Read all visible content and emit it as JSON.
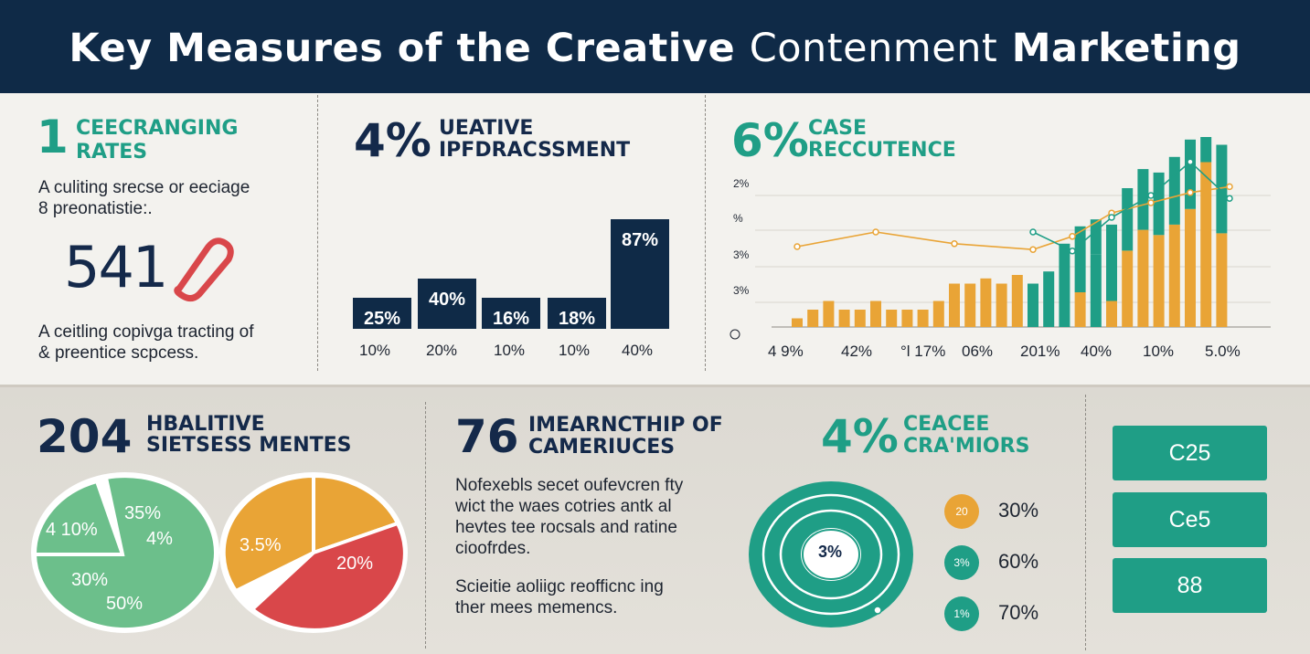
{
  "header": {
    "title_bold": "Key Measures of the Creative ",
    "title_thin": "Contenment",
    "title_end": " Marketing"
  },
  "panel1": {
    "number": "1",
    "title_line1": "CEECRANGING",
    "title_line2": "RATES",
    "desc_line1": "A culiting srecse or eeciage",
    "desc_line2": "8 preonatistie:.",
    "big_number": "541",
    "foot_line1": "A ceitling copivga tracting of",
    "foot_line2": "& preentice scpcess."
  },
  "panel2": {
    "percent": "4%",
    "title_line1": "UEATIVE",
    "title_line2": "IPFDRACSSMENT"
  },
  "panel3": {
    "percent": "6%",
    "title_line1": "CASE",
    "title_line2": "RECCUTENCE"
  },
  "panel4": {
    "number": "204",
    "title_line1": "HBALITIVE",
    "title_line2": "SIETSESS MENTES"
  },
  "panel5": {
    "number": "76",
    "title_line1": "IMEARNCTHIP OF",
    "title_line2": "CAMERIUCES",
    "desc_line1": "Nofexebls secet  oufevcren fty",
    "desc_line2": "wict the waes cotries antk al",
    "desc_line3": "hevtes tee rocsals and ratine",
    "desc_line4": "cioofrdes.",
    "desc_line5": "Scieitie aoliigc reofficnc ing",
    "desc_line6": "ther mees memencs."
  },
  "panel6": {
    "percent": "4%",
    "title_line1": "CEACEE",
    "title_line2": "CRA'MIORS",
    "ring_label": "3%",
    "legend": [
      {
        "badge": "20",
        "value": "30%",
        "color": "#e9a436"
      },
      {
        "badge": "3%",
        "value": "60%",
        "color": "#1f9e86"
      },
      {
        "badge": "1%",
        "value": "70%",
        "color": "#1f9e86"
      }
    ]
  },
  "stat_boxes": [
    "C25",
    "Ce5",
    "88"
  ],
  "colors": {
    "navy": "#0f2a47",
    "teal": "#1f9e86",
    "orange": "#e9a436",
    "red": "#d9474a",
    "light_green": "#6cbf8b"
  },
  "icons": {
    "panel1_icon": "tag-icon",
    "panel6_icon": "concentric-rings-icon"
  },
  "chart_data": [
    {
      "type": "bar",
      "categories": [
        "10%",
        "20%",
        "10%",
        "10%",
        "40%"
      ],
      "values": [
        25,
        40,
        16,
        18,
        87
      ],
      "data_labels": [
        "25%",
        "40%",
        "16%",
        "18%",
        "87%"
      ]
    },
    {
      "type": "bar",
      "x_tick_labels": [
        "4 9%",
        "42%",
        "°l 17%",
        "06%",
        "201%",
        "40%",
        "10%",
        "5.0%"
      ],
      "y_tick_labels": [
        "2%",
        "%",
        "3%",
        "3%"
      ],
      "series": [
        {
          "color": "#e9a436",
          "values": [
            0.5,
            1,
            1.5,
            1,
            1,
            1.5,
            1,
            1,
            1,
            1.5,
            2.5,
            2.5,
            2.8,
            2.5,
            3,
            0,
            0,
            0,
            2,
            0,
            1.5,
            0,
            0,
            0,
            0,
            0,
            0,
            0
          ]
        },
        {
          "color": "#e9a436",
          "values": [
            0,
            0,
            0,
            0,
            0,
            0,
            0,
            0,
            0,
            0,
            0,
            0,
            0,
            0,
            0,
            0,
            0,
            0,
            0,
            0,
            0,
            4.4,
            5.6,
            5.3,
            5.9,
            6.8,
            9.5,
            5.4
          ]
        },
        {
          "color": "#1f9e86",
          "values": [
            0,
            0,
            0,
            0,
            0,
            0,
            0,
            0,
            0,
            0,
            0,
            0,
            0,
            0,
            0,
            2.5,
            3.2,
            4.8,
            3.8,
            4.2,
            4.4,
            3.6,
            3.5,
            3.6,
            3.9,
            4.0,
            5.1,
            5.1
          ]
        },
        {
          "color": "#1f9e86",
          "values": [
            0,
            0,
            0,
            0,
            0,
            0,
            0,
            0,
            0,
            0,
            0,
            0,
            0,
            0,
            0,
            0,
            0,
            0,
            0,
            2,
            0,
            0,
            0,
            0,
            0,
            0,
            0,
            0
          ]
        }
      ],
      "lines": [
        {
          "color": "#e9a436",
          "points": [
            [
              0,
              5.5
            ],
            [
              2,
              6.5
            ],
            [
              4,
              5.7
            ],
            [
              6,
              5.3
            ],
            [
              7,
              6.2
            ],
            [
              8,
              7.8
            ],
            [
              9,
              8.5
            ],
            [
              10,
              9.2
            ],
            [
              11,
              9.6
            ]
          ]
        },
        {
          "color": "#1f9e86",
          "points": [
            [
              6,
              6.5
            ],
            [
              7,
              5.2
            ],
            [
              8,
              7.5
            ],
            [
              9,
              9.0
            ],
            [
              10,
              11.3
            ],
            [
              11,
              8.8
            ]
          ]
        }
      ]
    },
    {
      "type": "pie",
      "labels": [
        "4 10%",
        "35%",
        "4%",
        "30%",
        "50%"
      ],
      "slices": [
        0.3,
        0.7
      ],
      "colors": [
        "#6cbf8b",
        "#6cbf8b"
      ]
    },
    {
      "type": "pie",
      "labels": [
        "3.5%",
        "20%"
      ],
      "slices": [
        0.25,
        0.35,
        0.4
      ],
      "colors": [
        "#e9a436",
        "#e9a436",
        "#d9474a"
      ]
    }
  ]
}
